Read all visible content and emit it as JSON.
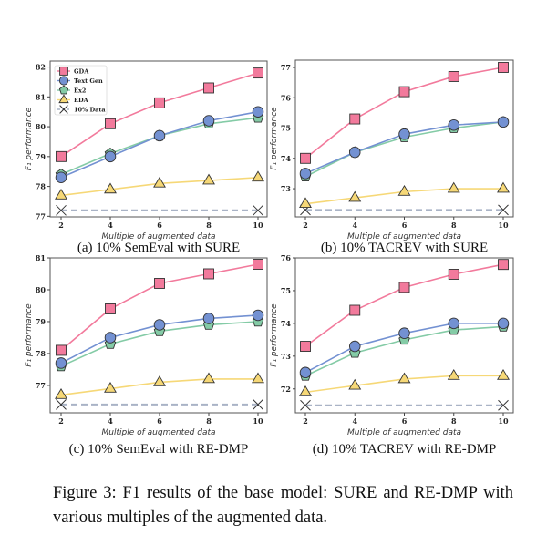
{
  "caption": "Figure 3: F1 results of the base model: SURE and RE-DMP with various multiples of the augmented data.",
  "colors": {
    "GDA": "#f27a9c",
    "Text Gen": "#7391d2",
    "Ex2": "#84cba6",
    "EDA": "#f6d877",
    "10% Data": "#a9b3c6"
  },
  "markers": {
    "GDA": "square",
    "Text Gen": "circle",
    "Ex2": "pentagon",
    "EDA": "triangle",
    "10% Data": "x"
  },
  "chart_data": [
    {
      "type": "line",
      "subcaption": "(a) 10% SemEval with SURE",
      "xlabel": "Multiple of augmented data",
      "ylabel": "F₁ performance",
      "x": [
        2,
        4,
        6,
        8,
        10
      ],
      "yticks": [
        77,
        78,
        79,
        80,
        81,
        82
      ],
      "ylim": [
        76.98,
        82.2
      ],
      "legend": "top-left",
      "grid": false,
      "series": [
        {
          "name": "GDA",
          "values": [
            79.0,
            80.1,
            80.8,
            81.3,
            81.8
          ]
        },
        {
          "name": "Text Gen",
          "values": [
            78.3,
            79.0,
            79.7,
            80.2,
            80.5
          ]
        },
        {
          "name": "Ex2",
          "values": [
            78.4,
            79.1,
            79.7,
            80.1,
            80.3
          ]
        },
        {
          "name": "EDA",
          "values": [
            77.7,
            77.9,
            78.1,
            78.2,
            78.3
          ]
        },
        {
          "name": "10% Data",
          "values": [
            77.2,
            77.2,
            77.2,
            77.2,
            77.2
          ]
        }
      ]
    },
    {
      "type": "line",
      "subcaption": "(b) 10% TACREV with SURE",
      "xlabel": "Multiple of augmented data",
      "ylabel": "F₁ performance",
      "x": [
        2,
        4,
        6,
        8,
        10
      ],
      "yticks": [
        73,
        74,
        75,
        76,
        77
      ],
      "ylim": [
        72.07,
        77.24
      ],
      "grid": false,
      "series": [
        {
          "name": "GDA",
          "values": [
            74.0,
            75.3,
            76.2,
            76.7,
            77.0
          ]
        },
        {
          "name": "Text Gen",
          "values": [
            73.5,
            74.2,
            74.8,
            75.1,
            75.2
          ]
        },
        {
          "name": "Ex2",
          "values": [
            73.4,
            74.2,
            74.7,
            75.0,
            75.2
          ]
        },
        {
          "name": "EDA",
          "values": [
            72.5,
            72.7,
            72.9,
            73.0,
            73.0
          ]
        },
        {
          "name": "10% Data",
          "values": [
            72.3,
            72.3,
            72.3,
            72.3,
            72.3
          ]
        }
      ]
    },
    {
      "type": "line",
      "subcaption": "(c) 10% SemEval with RE-DMP",
      "xlabel": "Multiple of augmented data",
      "ylabel": "F₁ performance",
      "x": [
        2,
        4,
        6,
        8,
        10
      ],
      "yticks": [
        77,
        78,
        79,
        80,
        81
      ],
      "ylim": [
        76.14,
        81.0
      ],
      "grid": false,
      "series": [
        {
          "name": "GDA",
          "values": [
            78.1,
            79.4,
            80.2,
            80.5,
            80.8
          ]
        },
        {
          "name": "Text Gen",
          "values": [
            77.7,
            78.5,
            78.9,
            79.1,
            79.2
          ]
        },
        {
          "name": "Ex2",
          "values": [
            77.6,
            78.3,
            78.7,
            78.9,
            79.0
          ]
        },
        {
          "name": "EDA",
          "values": [
            76.7,
            76.9,
            77.1,
            77.2,
            77.2
          ]
        },
        {
          "name": "10% Data",
          "values": [
            76.4,
            76.4,
            76.4,
            76.4,
            76.4
          ]
        }
      ]
    },
    {
      "type": "line",
      "subcaption": "(d) 10% TACREV with RE-DMP",
      "xlabel": "Multiple of augmented data",
      "ylabel": "F₁ performance",
      "x": [
        2,
        4,
        6,
        8,
        10
      ],
      "yticks": [
        72,
        73,
        74,
        75,
        76
      ],
      "ylim": [
        71.27,
        76.0
      ],
      "grid": false,
      "series": [
        {
          "name": "GDA",
          "values": [
            73.3,
            74.4,
            75.1,
            75.5,
            75.8
          ]
        },
        {
          "name": "Text Gen",
          "values": [
            72.5,
            73.3,
            73.7,
            74.0,
            74.0
          ]
        },
        {
          "name": "Ex2",
          "values": [
            72.4,
            73.1,
            73.5,
            73.8,
            73.9
          ]
        },
        {
          "name": "EDA",
          "values": [
            71.9,
            72.1,
            72.3,
            72.4,
            72.4
          ]
        },
        {
          "name": "10% Data",
          "values": [
            71.5,
            71.5,
            71.5,
            71.5,
            71.5
          ]
        }
      ]
    }
  ]
}
